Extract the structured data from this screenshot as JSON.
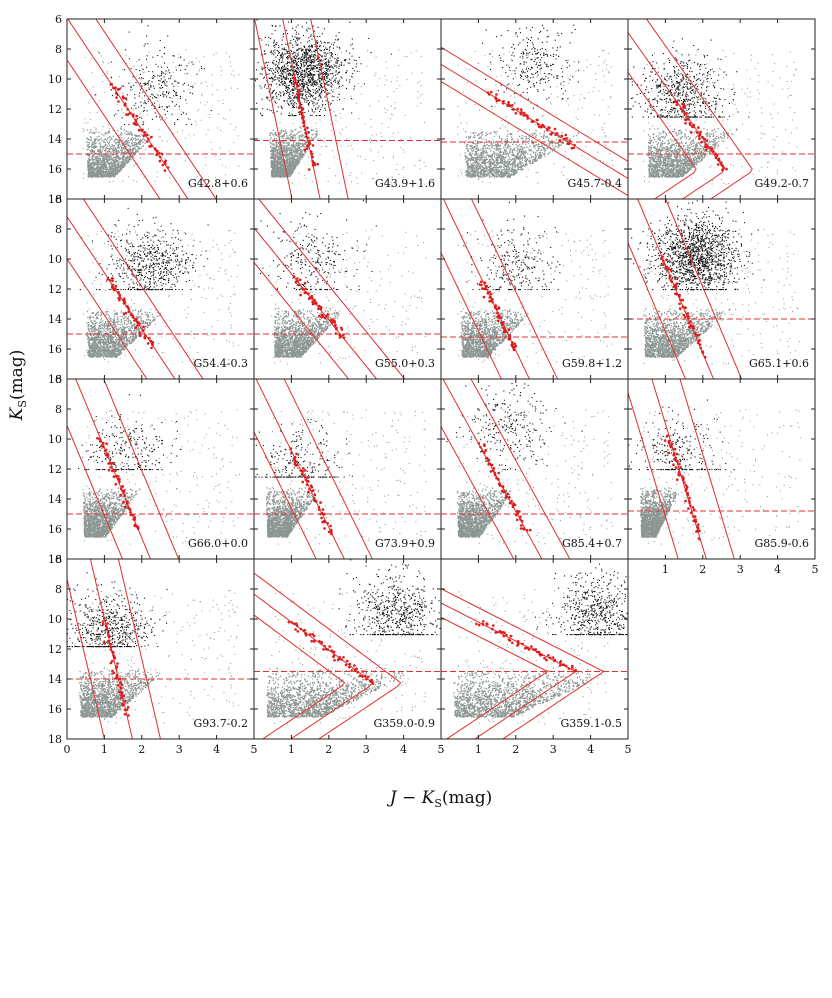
{
  "chart_data": {
    "type": "scatter",
    "title": "",
    "xlabel_main": "J − K",
    "xlabel_sub": "S",
    "xlabel_unit": "(mag)",
    "ylabel_main": "K",
    "ylabel_sub": "S",
    "ylabel_unit": "(mag)",
    "xlim": [
      0,
      5
    ],
    "ylim": [
      18,
      6
    ],
    "xticks": [
      0,
      1,
      2,
      3,
      4,
      5
    ],
    "yticks": [
      6,
      8,
      10,
      12,
      14,
      16,
      18
    ],
    "grid": false,
    "series_colors": {
      "field_bright": "#111111",
      "field_faint": "#8c9692",
      "red_clump": "#e01a1a",
      "tracks": "#e03030",
      "limit_line": "#e03030"
    },
    "panels": [
      {
        "label": "G42.8+0.6",
        "kmag_limit": 15.0,
        "rc_start": [
          1.2,
          10.4
        ],
        "rc_end": [
          2.7,
          16.0
        ],
        "rc_hook": false,
        "black_dense": "low",
        "black_cloud_color": [
          2.4,
          10.5
        ],
        "black_cut": 13.0,
        "faint_wedge": [
          0.5,
          2.5
        ]
      },
      {
        "label": "G43.9+1.6",
        "kmag_limit": 14.1,
        "rc_start": [
          1.1,
          10.0
        ],
        "rc_end": [
          1.6,
          16.0
        ],
        "rc_hook": false,
        "black_dense": "high",
        "black_cloud_color": [
          1.3,
          9.5
        ],
        "black_cut": 12.4,
        "faint_wedge": [
          0.4,
          1.8
        ]
      },
      {
        "label": "G45.7-0.4",
        "kmag_limit": 14.2,
        "rc_start": [
          1.3,
          11.0
        ],
        "rc_end": [
          3.6,
          14.5
        ],
        "rc_hook": false,
        "black_dense": "low",
        "black_cloud_color": [
          2.5,
          9.0
        ],
        "black_cut": 12.0,
        "faint_wedge": [
          0.6,
          4.0
        ]
      },
      {
        "label": "G49.2-0.7",
        "kmag_limit": 15.0,
        "rc_start": [
          1.3,
          11.5
        ],
        "rc_end": [
          2.6,
          16.1
        ],
        "rc_hook": true,
        "black_dense": "medium",
        "black_cloud_color": [
          1.4,
          11.0
        ],
        "black_cut": 12.5,
        "faint_wedge": [
          0.5,
          3.0
        ]
      },
      {
        "label": "G54.4-0.3",
        "kmag_limit": 15.0,
        "rc_start": [
          1.1,
          11.3
        ],
        "rc_end": [
          2.3,
          15.8
        ],
        "rc_hook": false,
        "black_dense": "medium",
        "black_cloud_color": [
          2.2,
          10.5
        ],
        "black_cut": 12.0,
        "faint_wedge": [
          0.5,
          2.7
        ]
      },
      {
        "label": "G55.0+0.3",
        "kmag_limit": 15.0,
        "rc_start": [
          1.1,
          11.3
        ],
        "rc_end": [
          2.4,
          15.3
        ],
        "rc_hook": false,
        "black_dense": "low",
        "black_cloud_color": [
          1.5,
          10.0
        ],
        "black_cut": 12.0,
        "faint_wedge": [
          0.5,
          2.5
        ]
      },
      {
        "label": "G59.8+1.2",
        "kmag_limit": 15.2,
        "rc_start": [
          1.1,
          11.4
        ],
        "rc_end": [
          2.0,
          16.1
        ],
        "rc_hook": false,
        "black_dense": "low",
        "black_cloud_color": [
          2.0,
          10.5
        ],
        "black_cut": 12.0,
        "faint_wedge": [
          0.5,
          2.5
        ]
      },
      {
        "label": "G65.1+0.6",
        "kmag_limit": 14.0,
        "rc_start": [
          0.9,
          9.8
        ],
        "rc_end": [
          2.0,
          16.3
        ],
        "rc_hook": false,
        "black_dense": "high",
        "black_cloud_color": [
          1.8,
          9.8
        ],
        "black_cut": 12.0,
        "faint_wedge": [
          0.4,
          2.8
        ]
      },
      {
        "label": "G66.0+0.0",
        "kmag_limit": 15.0,
        "rc_start": [
          0.9,
          10.0
        ],
        "rc_end": [
          1.9,
          16.0
        ],
        "rc_hook": false,
        "black_dense": "low",
        "black_cloud_color": [
          1.6,
          11.0
        ],
        "black_cut": 12.0,
        "faint_wedge": [
          0.4,
          2.0
        ]
      },
      {
        "label": "G73.9+0.9",
        "kmag_limit": 15.0,
        "rc_start": [
          1.0,
          10.8
        ],
        "rc_end": [
          2.1,
          16.4
        ],
        "rc_hook": false,
        "black_dense": "low",
        "black_cloud_color": [
          1.2,
          11.8
        ],
        "black_cut": 12.5,
        "faint_wedge": [
          0.3,
          1.8
        ]
      },
      {
        "label": "G85.4+0.7",
        "kmag_limit": 15.0,
        "rc_start": [
          1.0,
          10.3
        ],
        "rc_end": [
          2.3,
          16.2
        ],
        "rc_hook": false,
        "black_dense": "low",
        "black_cloud_color": [
          1.8,
          9.0
        ],
        "black_cut": 12.0,
        "faint_wedge": [
          0.4,
          2.0
        ]
      },
      {
        "label": "G85.9-0.6",
        "kmag_limit": 14.8,
        "rc_start": [
          1.1,
          9.8
        ],
        "rc_end": [
          1.9,
          16.4
        ],
        "rc_hook": false,
        "black_dense": "low",
        "black_cloud_color": [
          1.3,
          11.0
        ],
        "black_cut": 12.0,
        "faint_wedge": [
          0.3,
          1.4
        ]
      },
      {
        "label": "G93.7-0.2",
        "kmag_limit": 14.0,
        "rc_start": [
          1.0,
          10.0
        ],
        "rc_end": [
          1.6,
          16.4
        ],
        "rc_hook": false,
        "black_dense": "medium",
        "black_cloud_color": [
          1.1,
          10.8
        ],
        "black_cut": 11.8,
        "faint_wedge": [
          0.3,
          2.7
        ]
      },
      {
        "label": "G359.0-0.9",
        "kmag_limit": 13.5,
        "rc_start": [
          1.0,
          10.2
        ],
        "rc_end": [
          3.2,
          14.3
        ],
        "rc_hook": true,
        "black_dense": "medium",
        "black_cloud_color": [
          3.8,
          9.5
        ],
        "black_cut": 11.0,
        "faint_wedge": [
          0.3,
          4.5
        ]
      },
      {
        "label": "G359.1-0.5",
        "kmag_limit": 13.5,
        "rc_start": [
          1.0,
          10.2
        ],
        "rc_end": [
          3.6,
          13.5
        ],
        "rc_hook": true,
        "black_dense": "medium",
        "black_cloud_color": [
          4.2,
          9.5
        ],
        "black_cut": 11.0,
        "faint_wedge": [
          0.3,
          4.8
        ]
      }
    ]
  }
}
